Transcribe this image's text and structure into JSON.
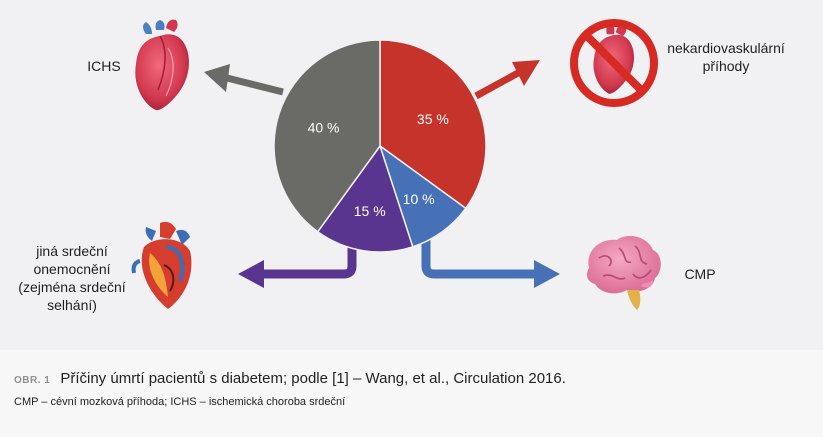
{
  "chart_data": {
    "type": "pie",
    "slices": [
      {
        "label": "35 %",
        "value": 35,
        "category": "nekardiovaskulární příhody",
        "color": "#c5332a"
      },
      {
        "label": "10 %",
        "value": 10,
        "category": "CMP",
        "color": "#4671b6"
      },
      {
        "label": "15 %",
        "value": 15,
        "category": "jiná srdeční onemocnění (zejména srdeční selhání)",
        "color": "#5a3590"
      },
      {
        "label": "40 %",
        "value": 40,
        "category": "ICHS",
        "color": "#6a6a67"
      }
    ]
  },
  "labels": {
    "ichs": "ICHS",
    "nekardio_line1": "nekardiovaskulární",
    "nekardio_line2": "příhody",
    "jina_line1": "jiná srdeční",
    "jina_line2": "onemocnění",
    "jina_line3": "(zejména srdeční",
    "jina_line4": "selhání)",
    "cmp": "CMP"
  },
  "caption": {
    "fig_num": "OBR. 1",
    "title": "Příčiny úmrtí pacientů s diabetem; podle [1] – Wang, et al., Circulation 2016.",
    "legend_cmp_abbr": "CMP",
    "legend_cmp_text": " – cévní mozková příhoda; ",
    "legend_ichs_abbr": "ICHS",
    "legend_ichs_text": " – ischemická choroba srdeční"
  },
  "icons": [
    "heart-icon",
    "no-heart-icon",
    "anatomical-heart-icon",
    "brain-icon"
  ],
  "colors": {
    "red": "#c5332a",
    "blue": "#4671b6",
    "purple": "#5a3590",
    "gray": "#6a6a67",
    "background": "#f1f1f4"
  }
}
